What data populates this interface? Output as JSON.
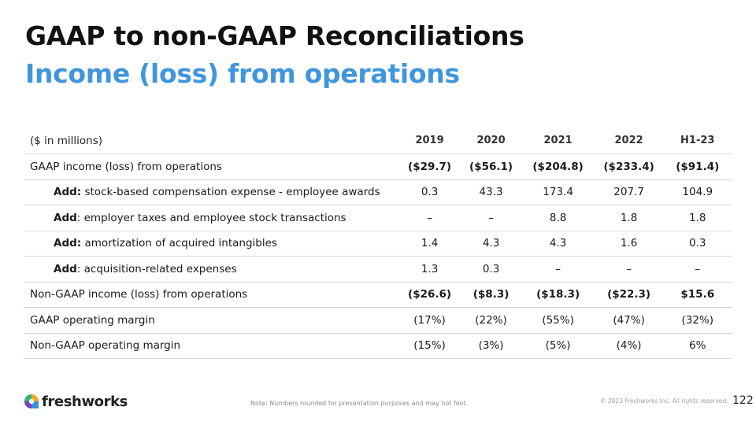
{
  "header": {
    "title": "GAAP to non-GAAP Reconciliations",
    "subtitle": "Income (loss) from operations"
  },
  "table": {
    "unit_label": "($ in millions)",
    "columns": [
      "2019",
      "2020",
      "2021",
      "2022",
      "H1-23"
    ],
    "rows": [
      {
        "prefix": "",
        "label": "GAAP income (loss) from operations",
        "values": [
          "($29.7)",
          "($56.1)",
          "($204.8)",
          "($233.4)",
          "($91.4)"
        ]
      },
      {
        "prefix": "Add:",
        "label": " stock-based compensation expense - employee awards",
        "values": [
          "0.3",
          "43.3",
          "173.4",
          "207.7",
          "104.9"
        ]
      },
      {
        "prefix": "Add",
        "label": ": employer taxes and employee stock transactions",
        "values": [
          "–",
          "–",
          "8.8",
          "1.8",
          "1.8"
        ]
      },
      {
        "prefix": "Add:",
        "label": " amortization of acquired intangibles",
        "values": [
          "1.4",
          "4.3",
          "4.3",
          "1.6",
          "0.3"
        ]
      },
      {
        "prefix": "Add",
        "label": ": acquisition-related expenses",
        "values": [
          "1.3",
          "0.3",
          "–",
          "–",
          "–"
        ]
      },
      {
        "prefix": "",
        "label": "Non-GAAP income (loss) from operations",
        "values": [
          "($26.6)",
          "($8.3)",
          "($18.3)",
          "($22.3)",
          "$15.6"
        ]
      },
      {
        "prefix": "",
        "label": "GAAP operating margin",
        "values": [
          "(17%)",
          "(22%)",
          "(55%)",
          "(47%)",
          "(32%)"
        ]
      },
      {
        "prefix": "",
        "label": "Non-GAAP operating margin",
        "values": [
          "(15%)",
          "(3%)",
          "(5%)",
          "(4%)",
          "6%"
        ]
      }
    ]
  },
  "footer": {
    "logo_text": "freshworks",
    "logo_icon": "freshworks-logo-icon",
    "note": "Note: Numbers rounded for presentation purposes and may not foot.",
    "copyright": "© 2023 Freshworks Inc. All rights reserved.",
    "page_number": "122"
  },
  "colors": {
    "accent": "#3f96dc",
    "title": "#111111",
    "rule": "#d6d6d6"
  }
}
